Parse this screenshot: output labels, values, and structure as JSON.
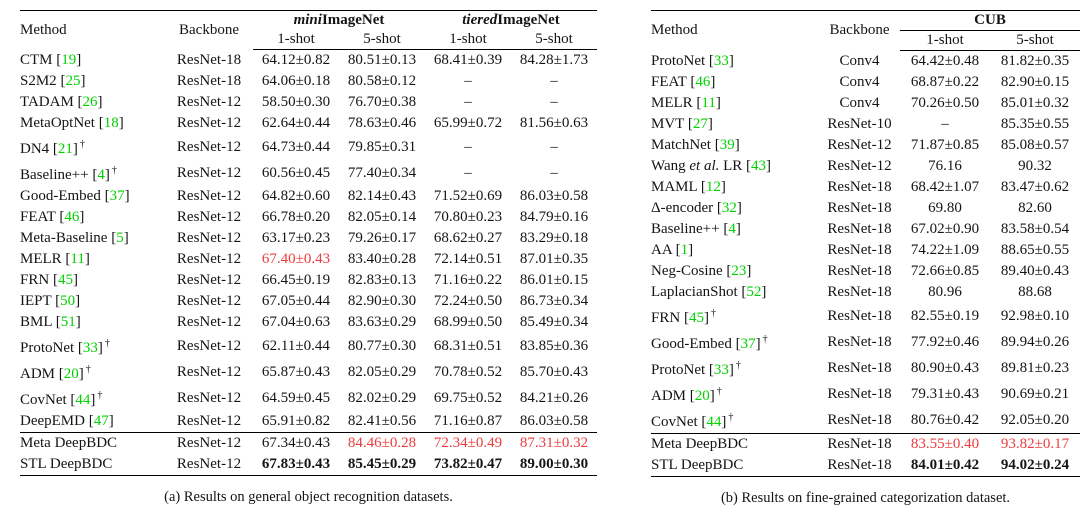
{
  "colors": {
    "citation_green": "#00d200",
    "highlight_red": "#ee3b3b",
    "text_black": "#141414"
  },
  "tables": [
    {
      "caption": "(a)  Results on general object recognition datasets.",
      "header": {
        "method_label": "Method",
        "backbone_label": "Backbone",
        "groups": [
          {
            "parts": [
              {
                "t": "mini",
                "i": true
              },
              {
                "t": "ImageNet",
                "i": false
              }
            ],
            "span": 2,
            "rule": false
          },
          {
            "parts": [
              {
                "t": "tiered",
                "i": true
              },
              {
                "t": "ImageNet",
                "i": false
              }
            ],
            "span": 2,
            "rule": false
          }
        ],
        "shot_labels": [
          "1-shot",
          "5-shot",
          "1-shot",
          "5-shot"
        ]
      },
      "rows": [
        {
          "method": "CTM",
          "cite": "19",
          "backbone": "ResNet-18",
          "values": [
            "64.12±0.82",
            "80.51±0.13",
            "68.41±0.39",
            "84.28±1.73"
          ]
        },
        {
          "method": "S2M2",
          "cite": "25",
          "backbone": "ResNet-18",
          "values": [
            "64.06±0.18",
            "80.58±0.12",
            "–",
            "–"
          ]
        },
        {
          "method": "TADAM",
          "cite": "26",
          "backbone": "ResNet-12",
          "values": [
            "58.50±0.30",
            "76.70±0.38",
            "–",
            "–"
          ]
        },
        {
          "method": "MetaOptNet",
          "cite": "18",
          "backbone": "ResNet-12",
          "values": [
            "62.64±0.44",
            "78.63±0.46",
            "65.99±0.72",
            "81.56±0.63"
          ]
        },
        {
          "method": "DN4",
          "cite": "21",
          "dagger": true,
          "backbone": "ResNet-12",
          "values": [
            "64.73±0.44",
            "79.85±0.31",
            "–",
            "–"
          ]
        },
        {
          "method": "Baseline++",
          "cite": "4",
          "dagger": true,
          "backbone": "ResNet-12",
          "values": [
            "60.56±0.45",
            "77.40±0.34",
            "–",
            "–"
          ]
        },
        {
          "method": "Good-Embed",
          "cite": "37",
          "backbone": "ResNet-12",
          "values": [
            "64.82±0.60",
            "82.14±0.43",
            "71.52±0.69",
            "86.03±0.58"
          ]
        },
        {
          "method": "FEAT",
          "cite": "46",
          "backbone": "ResNet-12",
          "values": [
            "66.78±0.20",
            "82.05±0.14",
            "70.80±0.23",
            "84.79±0.16"
          ]
        },
        {
          "method": "Meta-Baseline",
          "cite": "5",
          "backbone": "ResNet-12",
          "values": [
            "63.17±0.23",
            "79.26±0.17",
            "68.62±0.27",
            "83.29±0.18"
          ]
        },
        {
          "method": "MELR",
          "cite": "11",
          "backbone": "ResNet-12",
          "values": [
            "67.40±0.43",
            "83.40±0.28",
            "72.14±0.51",
            "87.01±0.35"
          ],
          "styles": [
            "r",
            "n",
            "n",
            "n"
          ]
        },
        {
          "method": "FRN",
          "cite": "45",
          "backbone": "ResNet-12",
          "values": [
            "66.45±0.19",
            "82.83±0.13",
            "71.16±0.22",
            "86.01±0.15"
          ]
        },
        {
          "method": "IEPT",
          "cite": "50",
          "backbone": "ResNet-12",
          "values": [
            "67.05±0.44",
            "82.90±0.30",
            "72.24±0.50",
            "86.73±0.34"
          ]
        },
        {
          "method": "BML",
          "cite": "51",
          "backbone": "ResNet-12",
          "values": [
            "67.04±0.63",
            "83.63±0.29",
            "68.99±0.50",
            "85.49±0.34"
          ]
        },
        {
          "method": "ProtoNet",
          "cite": "33",
          "dagger": true,
          "backbone": "ResNet-12",
          "values": [
            "62.11±0.44",
            "80.77±0.30",
            "68.31±0.51",
            "83.85±0.36"
          ]
        },
        {
          "method": "ADM",
          "cite": "20",
          "dagger": true,
          "backbone": "ResNet-12",
          "values": [
            "65.87±0.43",
            "82.05±0.29",
            "70.78±0.52",
            "85.70±0.43"
          ]
        },
        {
          "method": "CovNet",
          "cite": "44",
          "dagger": true,
          "backbone": "ResNet-12",
          "values": [
            "64.59±0.45",
            "82.02±0.29",
            "69.75±0.52",
            "84.21±0.26"
          ]
        },
        {
          "method": "DeepEMD",
          "cite": "47",
          "backbone": "ResNet-12",
          "values": [
            "65.91±0.82",
            "82.41±0.56",
            "71.16±0.87",
            "86.03±0.58"
          ]
        },
        {
          "method": "Meta DeepBDC",
          "backbone": "ResNet-12",
          "sep": true,
          "values": [
            "67.34±0.43",
            "84.46±0.28",
            "72.34±0.49",
            "87.31±0.32"
          ],
          "styles": [
            "n",
            "r",
            "r",
            "r"
          ]
        },
        {
          "method": "STL DeepBDC",
          "backbone": "ResNet-12",
          "values": [
            "67.83±0.43",
            "85.45±0.29",
            "73.82±0.47",
            "89.00±0.30"
          ],
          "styles": [
            "b",
            "b",
            "b",
            "b"
          ]
        }
      ]
    },
    {
      "caption": "(b) Results on fine-grained categorization dataset.",
      "header": {
        "method_label": "Method",
        "backbone_label": "Backbone",
        "groups": [
          {
            "parts": [
              {
                "t": "CUB",
                "i": false
              }
            ],
            "span": 2,
            "rule": true
          }
        ],
        "shot_labels": [
          "1-shot",
          "5-shot"
        ]
      },
      "rows": [
        {
          "method": "ProtoNet",
          "cite": "33",
          "backbone": "Conv4",
          "values": [
            "64.42±0.48",
            "81.82±0.35"
          ]
        },
        {
          "method": "FEAT",
          "cite": "46",
          "backbone": "Conv4",
          "values": [
            "68.87±0.22",
            "82.90±0.15"
          ]
        },
        {
          "method": "MELR",
          "cite": "11",
          "backbone": "Conv4",
          "values": [
            "70.26±0.50",
            "85.01±0.32"
          ]
        },
        {
          "method": "MVT",
          "cite": "27",
          "backbone": "ResNet-10",
          "values": [
            "–",
            "85.35±0.55"
          ]
        },
        {
          "method": "MatchNet",
          "cite": "39",
          "backbone": "ResNet-12",
          "values": [
            "71.87±0.85",
            "85.08±0.57"
          ]
        },
        {
          "method": "Wang et al. LR",
          "italic_span": "et al.",
          "cite": "43",
          "backbone": "ResNet-12",
          "values": [
            "76.16",
            "90.32"
          ]
        },
        {
          "method": "MAML",
          "cite": "12",
          "backbone": "ResNet-18",
          "values": [
            "68.42±1.07",
            "83.47±0.62"
          ]
        },
        {
          "method": "Δ-encoder",
          "cite": "32",
          "backbone": "ResNet-18",
          "values": [
            "69.80",
            "82.60"
          ]
        },
        {
          "method": "Baseline++",
          "cite": "4",
          "backbone": "ResNet-18",
          "values": [
            "67.02±0.90",
            "83.58±0.54"
          ]
        },
        {
          "method": "AA",
          "cite": "1",
          "backbone": "ResNet-18",
          "values": [
            "74.22±1.09",
            "88.65±0.55"
          ]
        },
        {
          "method": "Neg-Cosine",
          "cite": "23",
          "backbone": "ResNet-18",
          "values": [
            "72.66±0.85",
            "89.40±0.43"
          ]
        },
        {
          "method": "LaplacianShot",
          "cite": "52",
          "backbone": "ResNet-18",
          "values": [
            "80.96",
            "88.68"
          ]
        },
        {
          "method": "FRN",
          "cite": "45",
          "dagger": true,
          "backbone": "ResNet-18",
          "values": [
            "82.55±0.19",
            "92.98±0.10"
          ]
        },
        {
          "method": "Good-Embed",
          "cite": "37",
          "dagger": true,
          "backbone": "ResNet-18",
          "values": [
            "77.92±0.46",
            "89.94±0.26"
          ]
        },
        {
          "method": "ProtoNet",
          "cite": "33",
          "dagger": true,
          "backbone": "ResNet-18",
          "values": [
            "80.90±0.43",
            "89.81±0.23"
          ]
        },
        {
          "method": "ADM",
          "cite": "20",
          "dagger": true,
          "backbone": "ResNet-18",
          "values": [
            "79.31±0.43",
            "90.69±0.21"
          ]
        },
        {
          "method": "CovNet",
          "cite": "44",
          "dagger": true,
          "backbone": "ResNet-18",
          "values": [
            "80.76±0.42",
            "92.05±0.20"
          ]
        },
        {
          "method": "Meta DeepBDC",
          "backbone": "ResNet-18",
          "sep": true,
          "values": [
            "83.55±0.40",
            "93.82±0.17"
          ],
          "styles": [
            "r",
            "r"
          ]
        },
        {
          "method": "STL DeepBDC",
          "backbone": "ResNet-18",
          "values": [
            "84.01±0.42",
            "94.02±0.24"
          ],
          "styles": [
            "b",
            "b"
          ]
        }
      ]
    }
  ]
}
